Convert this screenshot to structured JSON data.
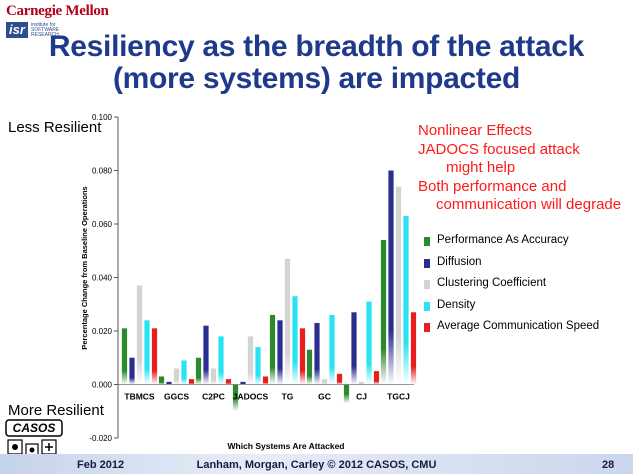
{
  "header": {
    "university": "Carnegie Mellon",
    "institute_mark": "isr",
    "institute_text": "institute for SOFTWARE RESEARCH"
  },
  "title": {
    "line1": "Resiliency as the breadth of the attack",
    "line2": "(more systems) are impacted"
  },
  "side_labels": {
    "top": "Less Resilient",
    "bottom": "More Resilient"
  },
  "annotations": [
    "Nonlinear Effects",
    "JADOCS focused attack",
    "might help",
    "Both performance and",
    "communication will degrade"
  ],
  "logo": {
    "casos": "CASOS"
  },
  "footer": {
    "date": "Feb 2012",
    "credit": "Lanham, Morgan, Carley © 2012 CASOS, CMU",
    "page": "28"
  },
  "colors": {
    "title": "#1f3a8a",
    "annotation": "#ff1a1a",
    "series": [
      "#2b8a2b",
      "#2a2f8f",
      "#d4d4d4",
      "#29e3f2",
      "#e81e1e"
    ]
  },
  "chart_data": {
    "type": "bar",
    "xlabel": "Which Systems Are Attacked",
    "ylabel": "Percentage Change from Baseline Operations",
    "ylim": [
      -0.02,
      0.1
    ],
    "yticks": [
      "-0.020",
      "0.000",
      "0.020",
      "0.040",
      "0.060",
      "0.080",
      "0.100"
    ],
    "ytick_values": [
      -0.02,
      0,
      0.02,
      0.04,
      0.06,
      0.08,
      0.1
    ],
    "grid": false,
    "legend_position": "right",
    "categories": [
      "TBMCS",
      "GGCS",
      "C2PC",
      "JADOCS",
      "TG",
      "GC",
      "CJ",
      "TGCJ"
    ],
    "series": [
      {
        "name": "Performance As Accuracy",
        "values": [
          0.021,
          0.003,
          0.01,
          -0.01,
          0.026,
          0.013,
          -0.007,
          0.054
        ]
      },
      {
        "name": "Diffusion",
        "values": [
          0.01,
          0.001,
          0.022,
          0.001,
          0.024,
          0.023,
          0.027,
          0.08
        ]
      },
      {
        "name": "Clustering Coefficient",
        "values": [
          0.037,
          0.006,
          0.006,
          0.018,
          0.047,
          0.002,
          0.001,
          0.074
        ]
      },
      {
        "name": "Density",
        "values": [
          0.024,
          0.009,
          0.018,
          0.014,
          0.033,
          0.026,
          0.031,
          0.063
        ]
      },
      {
        "name": "Average Communication Speed",
        "values": [
          0.021,
          0.002,
          0.002,
          0.003,
          0.021,
          0.004,
          0.005,
          0.027
        ]
      }
    ]
  }
}
